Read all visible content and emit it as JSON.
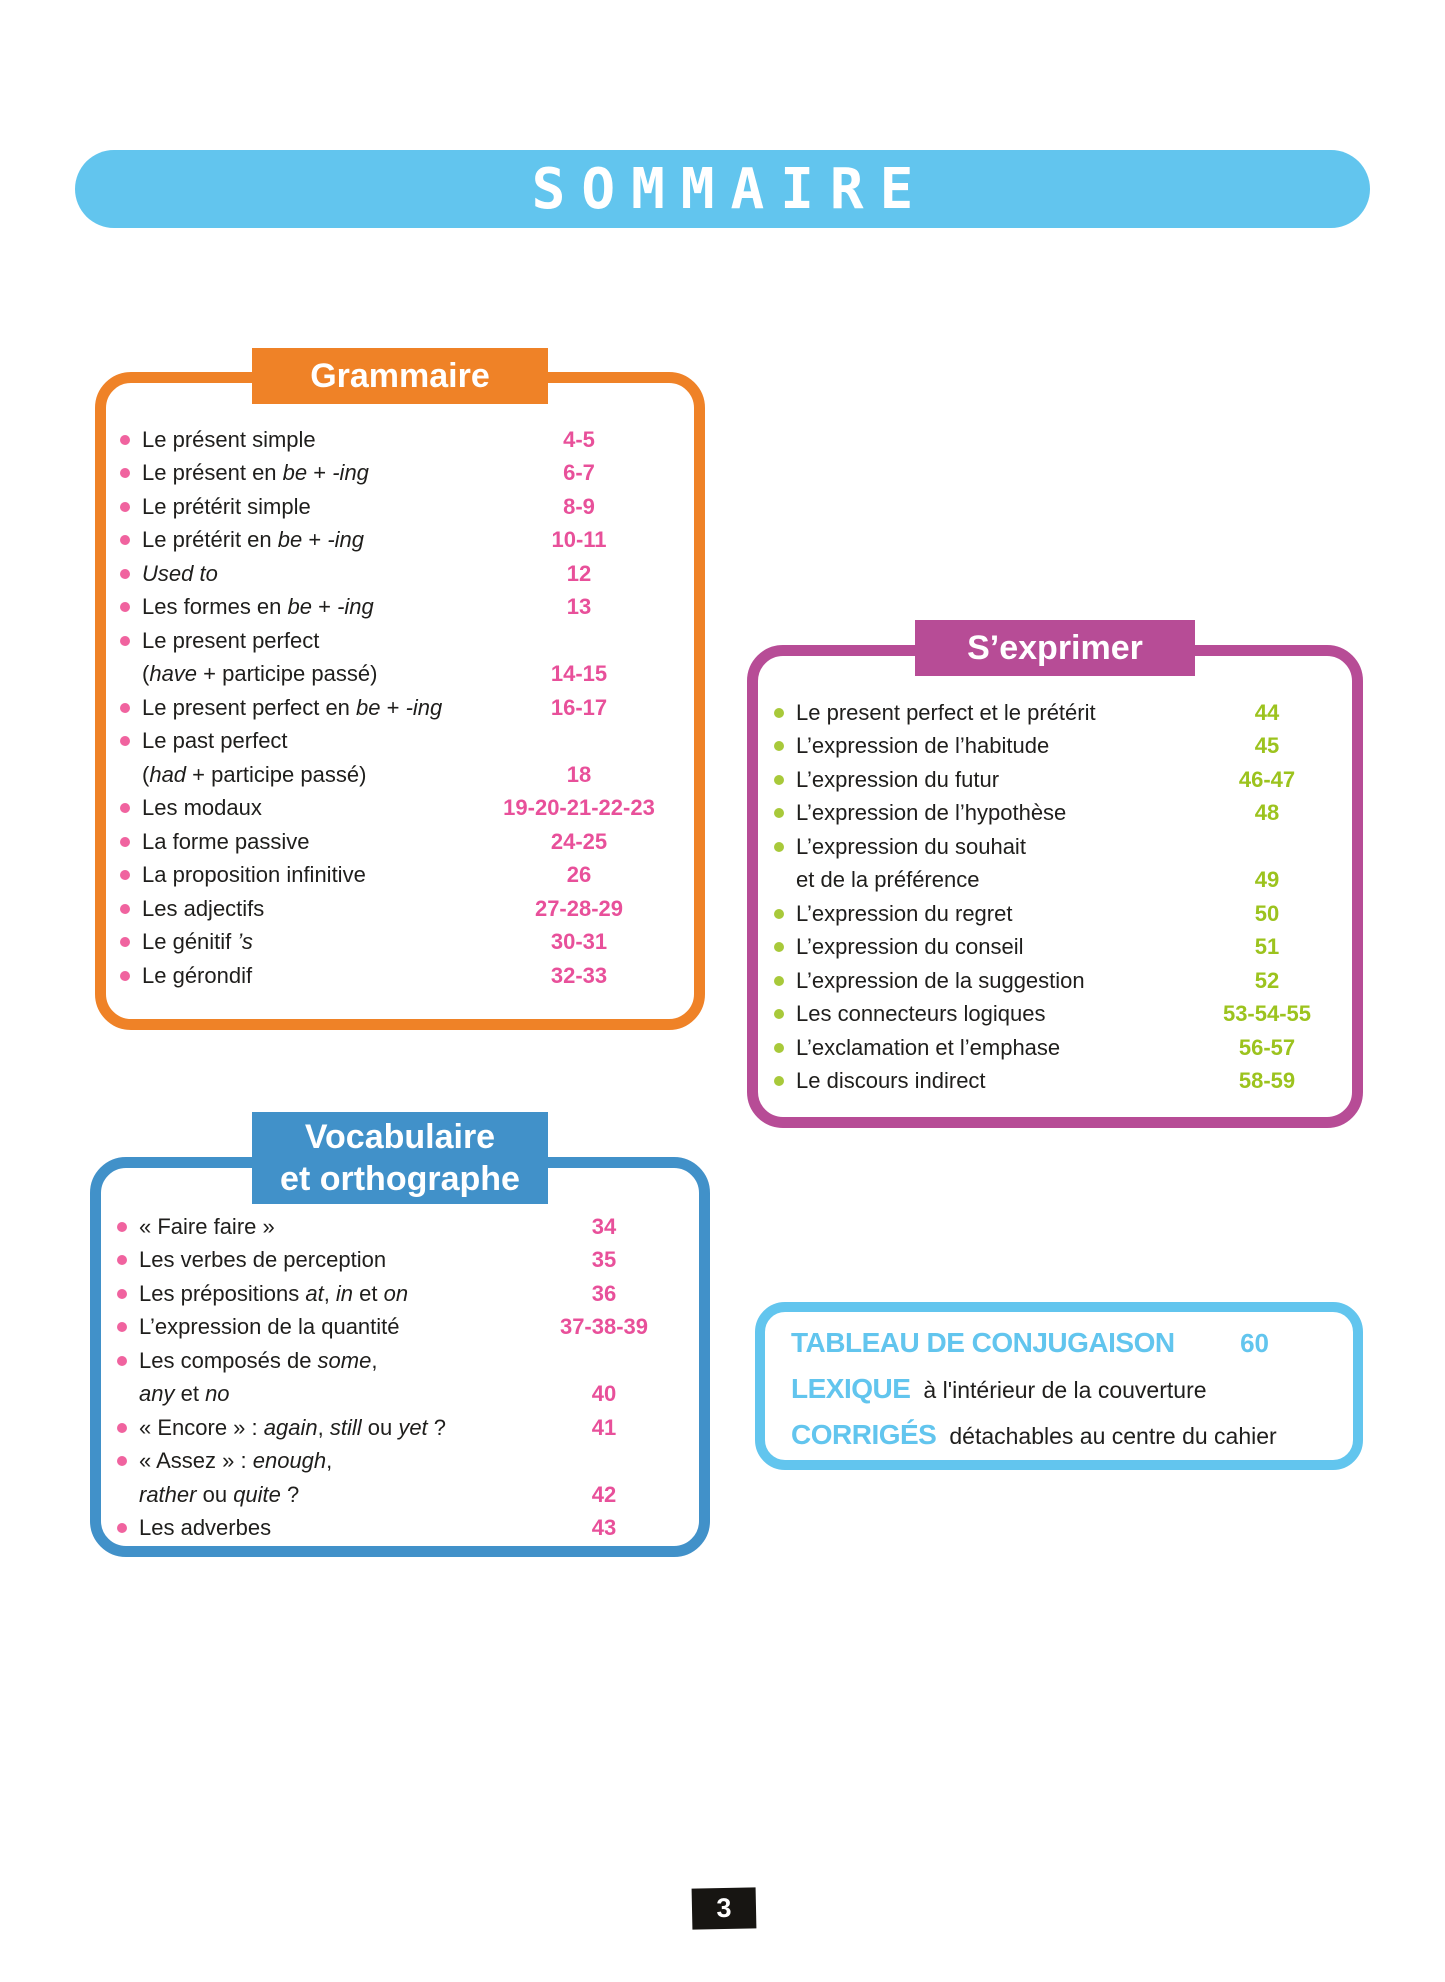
{
  "banner": {
    "title": "SOMMAIRE"
  },
  "colors": {
    "light_blue": "#62c5ee",
    "orange": "#ef8227",
    "magenta": "#b74c96",
    "blue": "#4191c9",
    "pink_bullet": "#f0639f",
    "pink_number": "#e8509a",
    "green_bullet": "#a8c93a",
    "green_number": "#9cc31e",
    "text": "#1f1e1c",
    "badge_bg": "#171512"
  },
  "sections": [
    {
      "id": "grammaire",
      "title_lines": [
        "Grammaire"
      ],
      "accent": "#ef8227",
      "bullet_color": "#f0639f",
      "page_color": "#e8509a",
      "items": [
        {
          "segments": [
            {
              "t": "Le présent simple"
            }
          ],
          "page": "4-5"
        },
        {
          "segments": [
            {
              "t": "Le présent en "
            },
            {
              "t": "be",
              "i": true
            },
            {
              "t": " + "
            },
            {
              "t": "-ing",
              "i": true
            }
          ],
          "page": "6-7"
        },
        {
          "segments": [
            {
              "t": "Le prétérit simple"
            }
          ],
          "page": "8-9"
        },
        {
          "segments": [
            {
              "t": "Le prétérit en "
            },
            {
              "t": "be",
              "i": true
            },
            {
              "t": " + "
            },
            {
              "t": "-ing",
              "i": true
            }
          ],
          "page": "10-11"
        },
        {
          "segments": [
            {
              "t": "Used to",
              "i": true
            }
          ],
          "page": "12"
        },
        {
          "segments": [
            {
              "t": "Les formes en "
            },
            {
              "t": "be",
              "i": true
            },
            {
              "t": " + "
            },
            {
              "t": "-ing",
              "i": true
            }
          ],
          "page": "13"
        },
        {
          "segments": [
            {
              "t": "Le present perfect"
            }
          ],
          "page": ""
        },
        {
          "indent": true,
          "segments": [
            {
              "t": "("
            },
            {
              "t": "have",
              "i": true
            },
            {
              "t": " + participe passé)"
            }
          ],
          "page": "14-15"
        },
        {
          "segments": [
            {
              "t": "Le present perfect en "
            },
            {
              "t": "be",
              "i": true
            },
            {
              "t": " + "
            },
            {
              "t": "-ing",
              "i": true
            }
          ],
          "page": "16-17"
        },
        {
          "segments": [
            {
              "t": "Le past perfect"
            }
          ],
          "page": ""
        },
        {
          "indent": true,
          "segments": [
            {
              "t": "("
            },
            {
              "t": "had",
              "i": true
            },
            {
              "t": " + participe passé)"
            }
          ],
          "page": "18"
        },
        {
          "segments": [
            {
              "t": "Les modaux"
            }
          ],
          "page": "19-20-21-22-23"
        },
        {
          "segments": [
            {
              "t": "La forme passive"
            }
          ],
          "page": "24-25"
        },
        {
          "segments": [
            {
              "t": "La proposition infinitive"
            }
          ],
          "page": "26"
        },
        {
          "segments": [
            {
              "t": "Les adjectifs"
            }
          ],
          "page": "27-28-29"
        },
        {
          "segments": [
            {
              "t": "Le génitif "
            },
            {
              "t": "’s",
              "i": true
            }
          ],
          "page": "30-31"
        },
        {
          "segments": [
            {
              "t": "Le gérondif"
            }
          ],
          "page": "32-33"
        }
      ]
    },
    {
      "id": "sexprimer",
      "title_lines": [
        "S’exprimer"
      ],
      "accent": "#b74c96",
      "bullet_color": "#a8c93a",
      "page_color": "#9cc31e",
      "items": [
        {
          "segments": [
            {
              "t": "Le present perfect et le prétérit"
            }
          ],
          "page": "44"
        },
        {
          "segments": [
            {
              "t": "L’expression de l’habitude"
            }
          ],
          "page": "45"
        },
        {
          "segments": [
            {
              "t": "L’expression du futur"
            }
          ],
          "page": "46-47"
        },
        {
          "segments": [
            {
              "t": "L’expression de l’hypothèse"
            }
          ],
          "page": "48"
        },
        {
          "segments": [
            {
              "t": "L’expression du souhait"
            }
          ],
          "page": ""
        },
        {
          "indent": true,
          "segments": [
            {
              "t": "et de la préférence"
            }
          ],
          "page": "49"
        },
        {
          "segments": [
            {
              "t": "L’expression du regret"
            }
          ],
          "page": "50"
        },
        {
          "segments": [
            {
              "t": "L’expression du conseil"
            }
          ],
          "page": "51"
        },
        {
          "segments": [
            {
              "t": "L’expression de la suggestion"
            }
          ],
          "page": "52"
        },
        {
          "segments": [
            {
              "t": "Les connecteurs logiques"
            }
          ],
          "page": "53-54-55"
        },
        {
          "segments": [
            {
              "t": "L’exclamation et l’emphase"
            }
          ],
          "page": "56-57"
        },
        {
          "segments": [
            {
              "t": "Le discours indirect"
            }
          ],
          "page": "58-59"
        }
      ]
    },
    {
      "id": "vocabulaire",
      "title_lines": [
        "Vocabulaire",
        "et orthographe"
      ],
      "accent": "#4191c9",
      "bullet_color": "#f0639f",
      "page_color": "#e8509a",
      "items": [
        {
          "segments": [
            {
              "t": "« Faire faire »"
            }
          ],
          "page": "34"
        },
        {
          "segments": [
            {
              "t": "Les verbes de perception"
            }
          ],
          "page": "35"
        },
        {
          "segments": [
            {
              "t": "Les prépositions "
            },
            {
              "t": "at",
              "i": true
            },
            {
              "t": ", "
            },
            {
              "t": "in",
              "i": true
            },
            {
              "t": " et "
            },
            {
              "t": "on",
              "i": true
            }
          ],
          "page": "36"
        },
        {
          "segments": [
            {
              "t": "L’expression de la quantité"
            }
          ],
          "page": "37-38-39"
        },
        {
          "segments": [
            {
              "t": "Les composés de "
            },
            {
              "t": "some",
              "i": true
            },
            {
              "t": ","
            }
          ],
          "page": ""
        },
        {
          "indent": true,
          "segments": [
            {
              "t": "any",
              "i": true
            },
            {
              "t": " et "
            },
            {
              "t": "no",
              "i": true
            }
          ],
          "page": "40"
        },
        {
          "segments": [
            {
              "t": "« Encore » : "
            },
            {
              "t": "again",
              "i": true
            },
            {
              "t": ", "
            },
            {
              "t": "still",
              "i": true
            },
            {
              "t": " ou "
            },
            {
              "t": "yet",
              "i": true
            },
            {
              "t": " ?"
            }
          ],
          "page": "41"
        },
        {
          "segments": [
            {
              "t": "« Assez » : "
            },
            {
              "t": "enough",
              "i": true
            },
            {
              "t": ","
            }
          ],
          "page": ""
        },
        {
          "indent": true,
          "segments": [
            {
              "t": "rather",
              "i": true
            },
            {
              "t": " ou "
            },
            {
              "t": "quite",
              "i": true
            },
            {
              "t": " ?"
            }
          ],
          "page": "42"
        },
        {
          "segments": [
            {
              "t": "Les adverbes"
            }
          ],
          "page": "43"
        }
      ]
    }
  ],
  "info_box": {
    "rows": [
      {
        "title": "TABLEAU DE CONJUGAISON",
        "text": "",
        "page": "60"
      },
      {
        "title": "LEXIQUE",
        "text": "à l'intérieur de la couverture",
        "page": ""
      },
      {
        "title": "CORRIGÉS",
        "text": "détachables au centre du cahier",
        "page": ""
      }
    ]
  },
  "footer": {
    "page_number": "3"
  }
}
